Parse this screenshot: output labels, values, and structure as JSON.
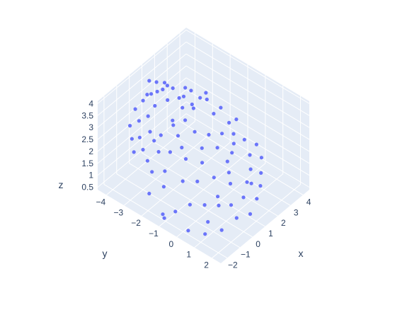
{
  "chart_data": {
    "type": "scatter3d",
    "title": "",
    "marker_color": "#636efa",
    "pane_color": "#e5ecf6",
    "grid_color": "#ffffff",
    "axes": {
      "x": {
        "title": "x",
        "ticks": [
          "4",
          "3",
          "2",
          "1",
          "0",
          "−1",
          "−2"
        ]
      },
      "y": {
        "title": "y",
        "ticks": [
          "−4",
          "−3",
          "−2",
          "−1",
          "0",
          "1",
          "2"
        ]
      },
      "z": {
        "title": "z",
        "ticks": [
          "0.5",
          "1",
          "1.5",
          "2",
          "2.5",
          "3",
          "3.5",
          "4"
        ]
      }
    },
    "points_note": "",
    "points": [
      [
        0.6,
        1.8,
        3.9
      ],
      [
        0.9,
        1.6,
        3.8
      ],
      [
        0.2,
        1.4,
        3.7
      ],
      [
        -0.3,
        1.5,
        3.6
      ],
      [
        1.2,
        1.2,
        3.7
      ],
      [
        1.5,
        1.1,
        3.5
      ],
      [
        0.8,
        0.9,
        3.4
      ],
      [
        -0.6,
        1.0,
        3.3
      ],
      [
        1.8,
        0.7,
        3.2
      ],
      [
        2.1,
        0.5,
        3.4
      ],
      [
        2.4,
        0.2,
        3.1
      ],
      [
        0.5,
        0.4,
        2.9
      ],
      [
        -1.0,
        0.6,
        3.0
      ],
      [
        -1.4,
        0.9,
        2.8
      ],
      [
        -1.7,
        0.5,
        2.6
      ],
      [
        -1.9,
        0.1,
        2.4
      ],
      [
        -2.1,
        -0.3,
        2.2
      ],
      [
        -1.5,
        -0.6,
        2.1
      ],
      [
        -0.8,
        -0.4,
        2.5
      ],
      [
        0.1,
        -0.2,
        2.7
      ],
      [
        1.0,
        -0.5,
        2.6
      ],
      [
        1.7,
        -0.8,
        2.3
      ],
      [
        2.6,
        -0.9,
        2.0
      ],
      [
        3.1,
        -1.2,
        1.9
      ],
      [
        3.4,
        -1.6,
        1.7
      ],
      [
        3.0,
        -2.2,
        1.5
      ],
      [
        2.5,
        -2.6,
        1.3
      ],
      [
        1.8,
        -2.9,
        1.2
      ],
      [
        1.1,
        -3.2,
        1.0
      ],
      [
        0.4,
        -3.0,
        0.9
      ],
      [
        -0.3,
        -2.8,
        1.1
      ],
      [
        -1.0,
        -2.5,
        1.3
      ],
      [
        -1.6,
        -2.1,
        1.4
      ],
      [
        -2.2,
        -1.7,
        1.2
      ],
      [
        -2.5,
        -1.2,
        1.0
      ],
      [
        -2.3,
        -2.5,
        0.8
      ],
      [
        -1.8,
        -3.1,
        0.7
      ],
      [
        -0.9,
        -3.4,
        0.6
      ],
      [
        0.0,
        -3.6,
        0.8
      ],
      [
        0.8,
        -3.8,
        0.7
      ],
      [
        1.6,
        -3.6,
        0.9
      ],
      [
        2.3,
        -3.3,
        1.0
      ],
      [
        2.9,
        -2.9,
        1.1
      ],
      [
        3.5,
        -2.5,
        1.3
      ],
      [
        3.8,
        -2.0,
        1.5
      ],
      [
        3.6,
        -1.0,
        2.2
      ],
      [
        3.2,
        -0.4,
        2.6
      ],
      [
        2.8,
        0.1,
        2.9
      ],
      [
        2.2,
        0.9,
        3.3
      ],
      [
        1.4,
        1.5,
        3.6
      ],
      [
        0.3,
        1.7,
        3.5
      ],
      [
        -0.5,
        1.8,
        3.2
      ],
      [
        -1.2,
        1.6,
        2.9
      ],
      [
        -0.2,
        0.9,
        3.6
      ],
      [
        0.7,
        1.1,
        3.8
      ],
      [
        1.0,
        0.2,
        3.3
      ],
      [
        0.0,
        0.0,
        3.1
      ],
      [
        -0.7,
        0.2,
        2.9
      ],
      [
        -1.3,
        -0.1,
        2.6
      ],
      [
        -0.4,
        -1.0,
        2.3
      ],
      [
        0.6,
        -1.2,
        2.4
      ],
      [
        1.4,
        -1.5,
        2.2
      ],
      [
        2.0,
        -1.9,
        1.9
      ],
      [
        1.2,
        -2.3,
        1.6
      ],
      [
        0.3,
        -2.1,
        1.7
      ],
      [
        -0.6,
        -1.8,
        1.8
      ],
      [
        -1.2,
        -1.4,
        1.9
      ],
      [
        -2.0,
        -0.9,
        1.8
      ],
      [
        -2.6,
        -0.5,
        1.6
      ],
      [
        -2.8,
        -1.5,
        1.1
      ],
      [
        2.7,
        -1.5,
        1.8
      ],
      [
        3.3,
        -0.8,
        2.1
      ],
      [
        1.9,
        0.3,
        3.0
      ],
      [
        1.3,
        0.6,
        3.4
      ],
      [
        0.4,
        1.2,
        3.8
      ],
      [
        -0.9,
        1.3,
        3.1
      ],
      [
        -1.6,
        1.2,
        2.7
      ],
      [
        -2.0,
        0.8,
        2.5
      ],
      [
        0.9,
        -2.6,
        1.4
      ],
      [
        -0.1,
        -2.6,
        1.3
      ],
      [
        -1.3,
        -2.9,
        0.9
      ],
      [
        2.0,
        -3.0,
        1.1
      ],
      [
        1.5,
        -2.0,
        1.8
      ],
      [
        0.2,
        -1.5,
        2.1
      ],
      [
        -0.3,
        -0.7,
        2.6
      ],
      [
        0.8,
        -0.1,
        3.0
      ],
      [
        1.6,
        0.0,
        3.1
      ],
      [
        2.5,
        -0.5,
        2.7
      ],
      [
        3.0,
        0.3,
        3.0
      ],
      [
        -1.1,
        0.3,
        2.8
      ]
    ]
  }
}
